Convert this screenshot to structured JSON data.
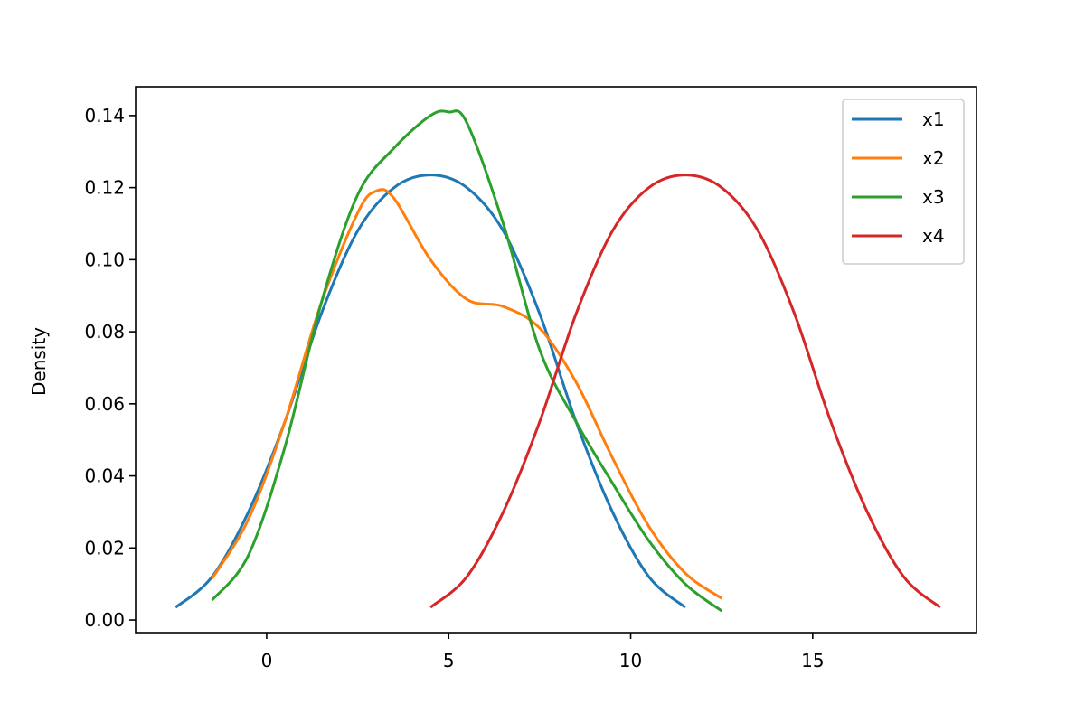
{
  "chart_data": {
    "type": "line",
    "title": "",
    "xlabel": "",
    "ylabel": "Density",
    "xlim": [
      -3.6,
      19.5
    ],
    "ylim": [
      -0.0035,
      0.148
    ],
    "xticks": [
      0,
      5,
      10,
      15
    ],
    "xtick_labels": [
      "0",
      "5",
      "10",
      "15"
    ],
    "yticks": [
      0.0,
      0.02,
      0.04,
      0.06,
      0.08,
      0.1,
      0.12,
      0.14
    ],
    "ytick_labels": [
      "0.00",
      "0.02",
      "0.04",
      "0.06",
      "0.08",
      "0.10",
      "0.12",
      "0.14"
    ],
    "grid": false,
    "legend_position": "top-right",
    "series": [
      {
        "name": "x1",
        "color": "#1f77b4",
        "x": [
          -2.5,
          -1.5,
          -0.5,
          0.5,
          1.5,
          2.5,
          3.5,
          4.5,
          5.5,
          6.5,
          7.5,
          8.5,
          9.5,
          10.5,
          11.5
        ],
        "y": [
          0.0035,
          0.012,
          0.03,
          0.055,
          0.085,
          0.108,
          0.12,
          0.1235,
          0.12,
          0.108,
          0.085,
          0.055,
          0.03,
          0.012,
          0.0035
        ]
      },
      {
        "name": "x2",
        "color": "#ff7f0e",
        "x": [
          -1.5,
          -0.5,
          0.5,
          1.5,
          2.5,
          3.0,
          3.5,
          4.5,
          5.5,
          6.5,
          7.5,
          8.5,
          9.5,
          10.5,
          11.5,
          12.5
        ],
        "y": [
          0.0115,
          0.028,
          0.055,
          0.088,
          0.113,
          0.119,
          0.117,
          0.1,
          0.089,
          0.087,
          0.081,
          0.066,
          0.045,
          0.026,
          0.013,
          0.006
        ]
      },
      {
        "name": "x3",
        "color": "#2ca02c",
        "x": [
          -1.5,
          -0.5,
          0.5,
          1.5,
          2.5,
          3.5,
          4.5,
          5.0,
          5.5,
          6.5,
          7.5,
          8.5,
          9.5,
          10.5,
          11.5,
          12.5
        ],
        "y": [
          0.0055,
          0.018,
          0.048,
          0.088,
          0.118,
          0.131,
          0.14,
          0.141,
          0.138,
          0.11,
          0.075,
          0.055,
          0.038,
          0.022,
          0.01,
          0.0025
        ]
      },
      {
        "name": "x4",
        "color": "#d62728",
        "x": [
          4.5,
          5.5,
          6.5,
          7.5,
          8.5,
          9.5,
          10.5,
          11.5,
          12.5,
          13.5,
          14.5,
          15.5,
          16.5,
          17.5,
          18.5
        ],
        "y": [
          0.0035,
          0.012,
          0.03,
          0.055,
          0.085,
          0.108,
          0.12,
          0.1235,
          0.12,
          0.108,
          0.085,
          0.055,
          0.03,
          0.012,
          0.0035
        ]
      }
    ]
  }
}
